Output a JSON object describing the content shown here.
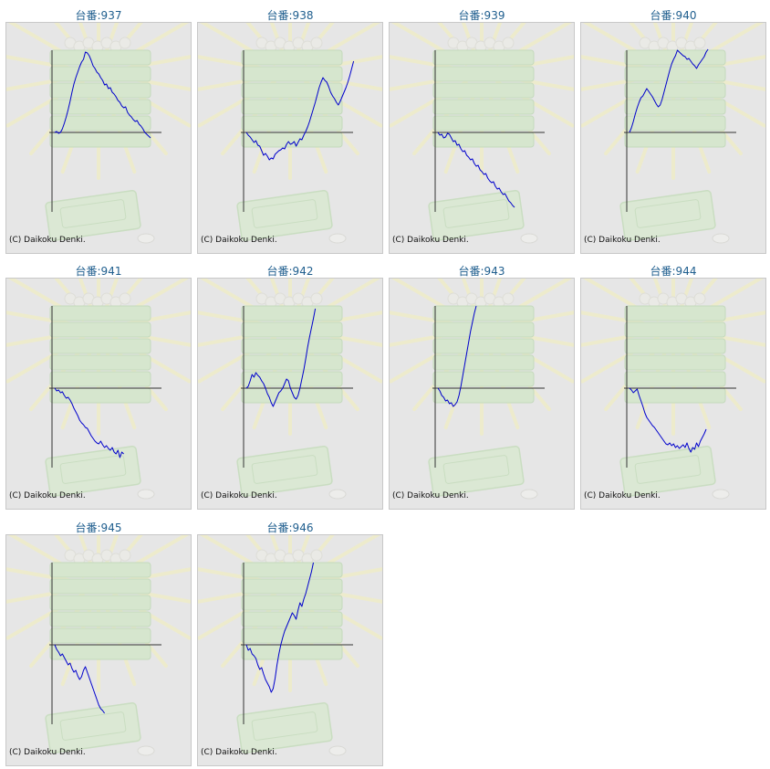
{
  "credit": "(C) Daikoku Denki.",
  "colors": {
    "line": "#0000cc",
    "axis": "#333333",
    "title": "#1f5e8e",
    "panel": "#e6e6e6",
    "background_art": "#cfe6c2"
  },
  "chart_data": [
    {
      "type": "line",
      "title": "台番:937",
      "values": [
        0,
        1,
        -1,
        0,
        4,
        10,
        17,
        25,
        34,
        44,
        53,
        60,
        66,
        72,
        77,
        80,
        88,
        87,
        84,
        79,
        73,
        70,
        66,
        64,
        60,
        57,
        52,
        53,
        48,
        49,
        44,
        42,
        39,
        35,
        33,
        29,
        27,
        28,
        22,
        19,
        17,
        14,
        12,
        13,
        9,
        7,
        4,
        0,
        -2,
        -4,
        -6
      ]
    },
    {
      "type": "line",
      "title": "台番:938",
      "values": [
        0,
        -3,
        -5,
        -8,
        -11,
        -9,
        -14,
        -15,
        -20,
        -25,
        -23,
        -26,
        -30,
        -28,
        -29,
        -24,
        -22,
        -20,
        -19,
        -17,
        -18,
        -13,
        -10,
        -13,
        -12,
        -10,
        -15,
        -11,
        -7,
        -8,
        -3,
        1,
        6,
        12,
        19,
        26,
        33,
        41,
        49,
        55,
        60,
        57,
        55,
        50,
        44,
        40,
        37,
        33,
        30,
        34,
        39,
        44,
        49,
        55,
        62,
        70,
        78
      ]
    },
    {
      "type": "line",
      "title": "台番:939",
      "values": [
        0,
        -3,
        -2,
        -6,
        -5,
        -1,
        -2,
        -6,
        -10,
        -9,
        -14,
        -13,
        -18,
        -21,
        -20,
        -25,
        -27,
        -30,
        -29,
        -34,
        -37,
        -36,
        -41,
        -43,
        -46,
        -45,
        -50,
        -53,
        -55,
        -54,
        -59,
        -62,
        -61,
        -65,
        -68,
        -67,
        -71,
        -75,
        -77,
        -80,
        -82
      ]
    },
    {
      "type": "line",
      "title": "台番:940",
      "values": [
        0,
        5,
        12,
        20,
        27,
        33,
        38,
        40,
        44,
        48,
        45,
        42,
        39,
        35,
        31,
        28,
        30,
        36,
        44,
        52,
        60,
        68,
        75,
        80,
        84,
        90,
        88,
        86,
        84,
        83,
        80,
        81,
        78,
        75,
        73,
        70,
        74,
        77,
        80,
        83,
        88,
        91
      ]
    },
    {
      "type": "line",
      "title": "台番:941",
      "values": [
        0,
        -3,
        -2,
        -5,
        -4,
        -8,
        -11,
        -10,
        -13,
        -17,
        -22,
        -26,
        -30,
        -35,
        -38,
        -40,
        -43,
        -44,
        -48,
        -52,
        -55,
        -58,
        -60,
        -61,
        -58,
        -62,
        -65,
        -63,
        -66,
        -68,
        -65,
        -70,
        -72,
        -68,
        -76,
        -70,
        -72
      ]
    },
    {
      "type": "line",
      "title": "台番:942",
      "values": [
        0,
        2,
        8,
        15,
        12,
        17,
        14,
        12,
        8,
        5,
        0,
        -6,
        -10,
        -16,
        -20,
        -15,
        -10,
        -5,
        -3,
        0,
        5,
        10,
        8,
        0,
        -5,
        -10,
        -12,
        -8,
        0,
        10,
        20,
        32,
        45,
        56,
        66,
        76,
        87
      ]
    },
    {
      "type": "line",
      "title": "台番:943",
      "values": [
        0,
        -3,
        -8,
        -10,
        -14,
        -13,
        -17,
        -16,
        -20,
        -18,
        -15,
        -8,
        2,
        14,
        26,
        38,
        50,
        62,
        72,
        82,
        90
      ]
    },
    {
      "type": "line",
      "title": "台番:944",
      "values": [
        0,
        -2,
        -5,
        -3,
        -1,
        -8,
        -14,
        -20,
        -27,
        -32,
        -35,
        -38,
        -41,
        -43,
        -46,
        -49,
        -52,
        -55,
        -58,
        -61,
        -62,
        -60,
        -63,
        -61,
        -65,
        -63,
        -66,
        -64,
        -62,
        -65,
        -60,
        -66,
        -70,
        -65,
        -67,
        -60,
        -64,
        -58,
        -54,
        -50,
        -45
      ]
    },
    {
      "type": "line",
      "title": "台番:945",
      "values": [
        0,
        -5,
        -8,
        -12,
        -10,
        -14,
        -18,
        -22,
        -20,
        -26,
        -30,
        -28,
        -34,
        -38,
        -35,
        -28,
        -24,
        -30,
        -36,
        -42,
        -48,
        -54,
        -60,
        -66,
        -70,
        -72,
        -75
      ]
    },
    {
      "type": "line",
      "title": "台番:946",
      "values": [
        0,
        -6,
        -4,
        -10,
        -12,
        -15,
        -22,
        -27,
        -25,
        -32,
        -38,
        -42,
        -46,
        -52,
        -48,
        -37,
        -22,
        -10,
        0,
        8,
        15,
        20,
        25,
        30,
        35,
        32,
        28,
        38,
        46,
        42,
        50,
        56,
        64,
        72,
        80,
        90
      ]
    }
  ]
}
